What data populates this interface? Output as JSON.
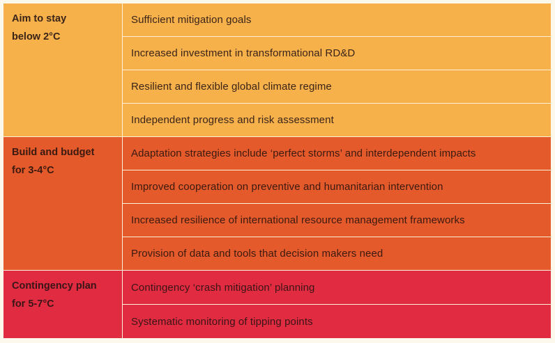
{
  "table": {
    "colors": {
      "group1": "#F7B14B",
      "group2": "#E55A2B",
      "group3": "#E12B40",
      "text": "#3A2418",
      "background": "#FDF8EC"
    },
    "groups": [
      {
        "label_line1": "Aim to stay",
        "label_line2": "below 2°C",
        "items": [
          "Sufficient mitigation goals",
          "Increased investment in transformational RD&D",
          "Resilient and flexible global climate regime",
          "Independent progress and risk assessment"
        ]
      },
      {
        "label_line1": "Build and budget",
        "label_line2": "for 3-4°C",
        "items": [
          "Adaptation strategies include ‘perfect storms’ and interdependent impacts",
          "Improved cooperation on preventive and humanitarian intervention",
          "Increased resilience of international resource management frameworks",
          "Provision of data and tools that decision makers need"
        ]
      },
      {
        "label_line1": "Contingency plan",
        "label_line2": "for 5-7°C",
        "items": [
          "Contingency ‘crash mitigation’ planning",
          "Systematic monitoring of tipping points"
        ]
      }
    ]
  }
}
